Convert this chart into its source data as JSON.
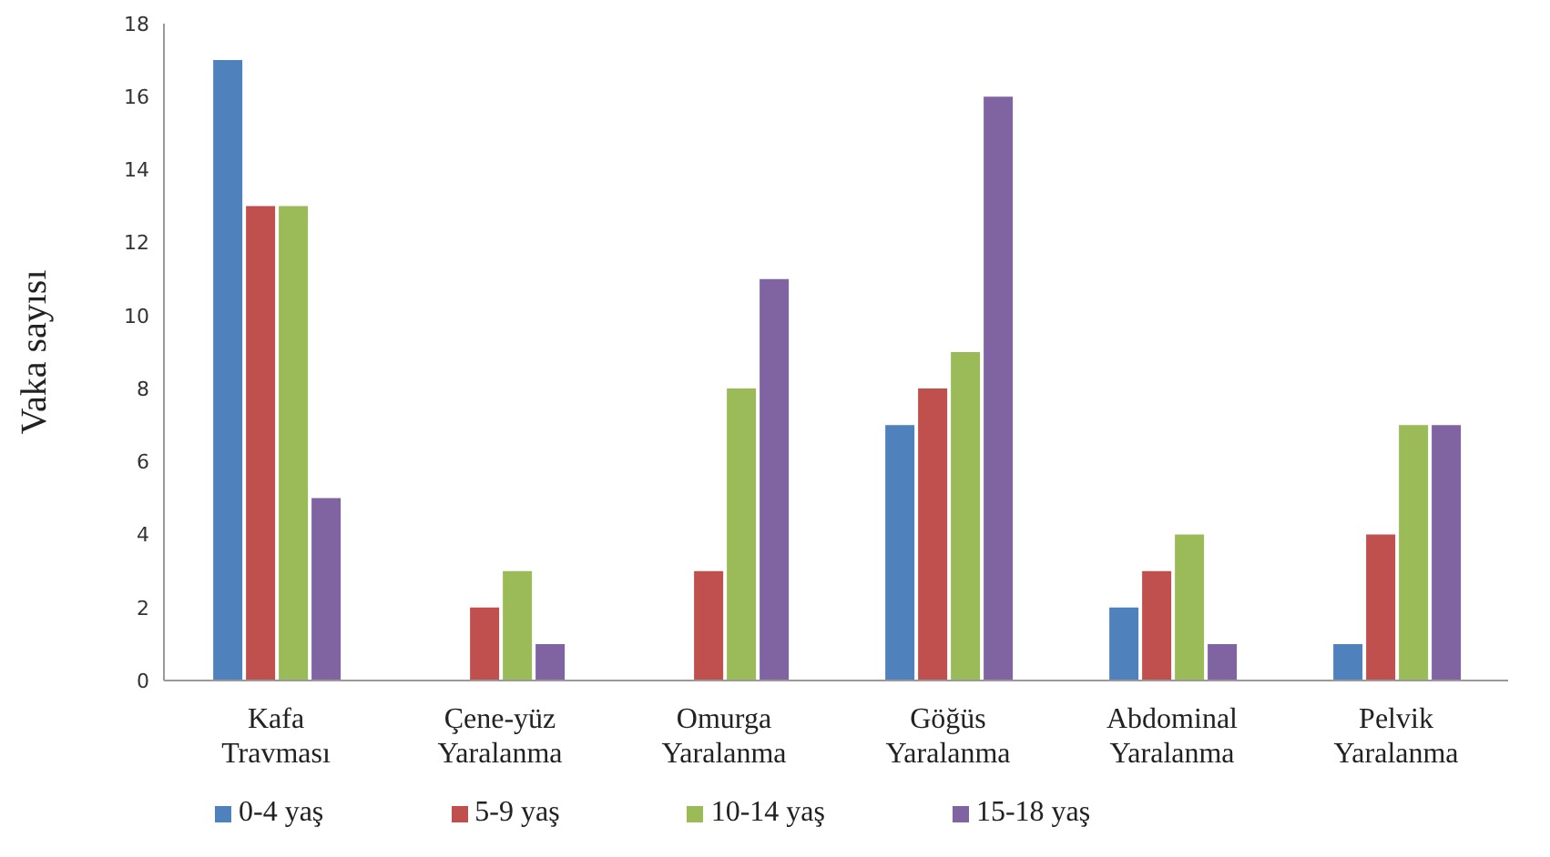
{
  "chart_data": {
    "type": "bar",
    "ylabel": "Vaka sayısı",
    "categories": [
      "Kafa Travması",
      "Çene-yüz Yaralanma",
      "Omurga Yaralanma",
      "Göğüs Yaralanma",
      "Abdominal Yaralanma",
      "Pelvik Yaralanma"
    ],
    "series": [
      {
        "name": "0-4 yaş",
        "color": "#4f81bd",
        "values": [
          17,
          0,
          0,
          7,
          2,
          1
        ]
      },
      {
        "name": "5-9 yaş",
        "color": "#c0504d",
        "values": [
          13,
          2,
          3,
          8,
          3,
          4
        ]
      },
      {
        "name": "10-14 yaş",
        "color": "#9bbb59",
        "values": [
          13,
          3,
          8,
          9,
          4,
          7
        ]
      },
      {
        "name": "15-18 yaş",
        "color": "#8064a2",
        "values": [
          5,
          1,
          11,
          16,
          1,
          7
        ]
      }
    ],
    "ylim": [
      0,
      18
    ],
    "yticks": [
      0,
      2,
      4,
      6,
      8,
      10,
      12,
      14,
      16,
      18
    ],
    "grid": false,
    "legend": "bottom"
  }
}
